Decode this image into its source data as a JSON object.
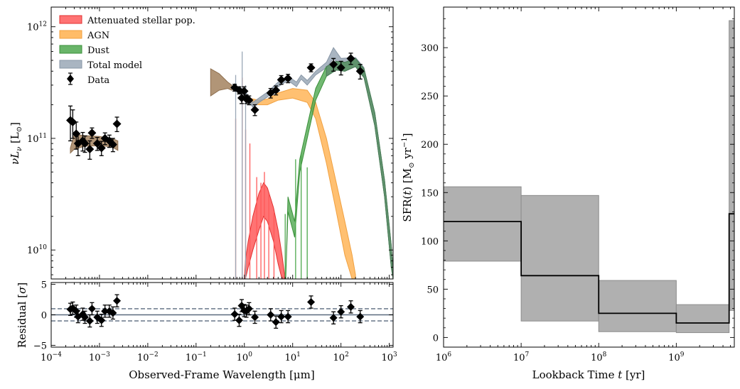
{
  "chart_data": [
    {
      "id": "sed",
      "type": "scatter",
      "xscale": "log",
      "yscale": "log",
      "xlim": [
        0.0001,
        1200
      ],
      "ylim": [
        5500000000.0,
        1500000000000.0
      ],
      "ylabel_parts": [
        "νL",
        "ν",
        " [L",
        "⊙",
        "]"
      ],
      "y_ticks": [
        {
          "value": 1000000000000.0,
          "label": "10",
          "exp": "12"
        },
        {
          "value": 100000000000.0,
          "label": "10",
          "exp": "11"
        },
        {
          "value": 10000000000.0,
          "label": "10",
          "exp": "10"
        }
      ],
      "legend": {
        "placement": "top-left",
        "entries": [
          {
            "label": "Attenuated stellar pop.",
            "color": "#ff5a5a",
            "kind": "patch"
          },
          {
            "label": "AGN",
            "color": "#ffb04d",
            "kind": "patch"
          },
          {
            "label": "Dust",
            "color": "#4fa84f",
            "kind": "patch"
          },
          {
            "label": "Total model",
            "color": "#9aa8b6",
            "kind": "patch"
          },
          {
            "label": "Data",
            "color": "#000000",
            "kind": "marker"
          }
        ]
      },
      "data_points": [
        {
          "x": 0.00025,
          "y": 145000000000.0,
          "err": 50000000000.0
        },
        {
          "x": 0.00028,
          "y": 140000000000.0,
          "err": 40000000000.0
        },
        {
          "x": 0.00033,
          "y": 110000000000.0,
          "err": 30000000000.0
        },
        {
          "x": 0.00036,
          "y": 90000000000.0,
          "err": 20000000000.0
        },
        {
          "x": 0.00045,
          "y": 95000000000.0,
          "err": 18000000000.0
        },
        {
          "x": 0.0005,
          "y": 90000000000.0,
          "err": 15000000000.0
        },
        {
          "x": 0.00063,
          "y": 80000000000.0,
          "err": 15000000000.0
        },
        {
          "x": 0.0007,
          "y": 112000000000.0,
          "err": 12000000000.0
        },
        {
          "x": 0.0009,
          "y": 90000000000.0,
          "err": 12000000000.0
        },
        {
          "x": 0.0011,
          "y": 82000000000.0,
          "err": 12000000000.0
        },
        {
          "x": 0.0013,
          "y": 100000000000.0,
          "err": 12000000000.0
        },
        {
          "x": 0.0016,
          "y": 95000000000.0,
          "err": 12000000000.0
        },
        {
          "x": 0.0019,
          "y": 88000000000.0,
          "err": 12000000000.0
        },
        {
          "x": 0.0023,
          "y": 135000000000.0,
          "err": 20000000000.0
        },
        {
          "x": 0.63,
          "y": 285000000000.0,
          "err": 20000000000.0
        },
        {
          "x": 0.78,
          "y": 270000000000.0,
          "err": 20000000000.0
        },
        {
          "x": 0.88,
          "y": 230000000000.0,
          "err": 25000000000.0
        },
        {
          "x": 0.99,
          "y": 265000000000.0,
          "err": 25000000000.0
        },
        {
          "x": 1.1,
          "y": 225000000000.0,
          "err": 20000000000.0
        },
        {
          "x": 1.25,
          "y": 220000000000.0,
          "err": 20000000000.0
        },
        {
          "x": 1.65,
          "y": 180000000000.0,
          "err": 20000000000.0
        },
        {
          "x": 3.5,
          "y": 255000000000.0,
          "err": 25000000000.0
        },
        {
          "x": 4.5,
          "y": 270000000000.0,
          "err": 25000000000.0
        },
        {
          "x": 5.8,
          "y": 335000000000.0,
          "err": 30000000000.0
        },
        {
          "x": 8.0,
          "y": 345000000000.0,
          "err": 30000000000.0
        },
        {
          "x": 24,
          "y": 430000000000.0,
          "err": 35000000000.0
        },
        {
          "x": 70,
          "y": 460000000000.0,
          "err": 60000000000.0
        },
        {
          "x": 100,
          "y": 430000000000.0,
          "err": 60000000000.0
        },
        {
          "x": 160,
          "y": 520000000000.0,
          "err": 60000000000.0
        },
        {
          "x": 250,
          "y": 400000000000.0,
          "err": 60000000000.0
        }
      ],
      "components": {
        "stellar_uv": [
          {
            "x": 0.00025,
            "lo": 74000000000.0,
            "hi": 82000000000.0
          },
          {
            "x": 0.0003,
            "lo": 80000000000.0,
            "hi": 108000000000.0
          },
          {
            "x": 0.0005,
            "lo": 85000000000.0,
            "hi": 106000000000.0
          },
          {
            "x": 0.001,
            "lo": 86000000000.0,
            "hi": 104000000000.0
          },
          {
            "x": 0.0018,
            "lo": 84000000000.0,
            "hi": 100000000000.0
          },
          {
            "x": 0.0024,
            "lo": 78000000000.0,
            "hi": 95000000000.0
          }
        ],
        "stellar_opt": [
          {
            "x": 0.2,
            "lo": 240000000000.0,
            "hi": 420000000000.0
          },
          {
            "x": 0.3,
            "lo": 270000000000.0,
            "hi": 380000000000.0
          },
          {
            "x": 0.45,
            "lo": 280000000000.0,
            "hi": 320000000000.0
          },
          {
            "x": 0.55,
            "lo": 270000000000.0,
            "hi": 300000000000.0
          }
        ],
        "stellar_att": [
          {
            "x": 1.0,
            "lo": 5500000000.0,
            "hi": 5500000000.0
          },
          {
            "x": 1.05,
            "lo": 5500000000.0,
            "hi": 8000000000.0
          },
          {
            "x": 1.2,
            "lo": 7000000000.0,
            "hi": 12000000000.0
          },
          {
            "x": 1.5,
            "lo": 10000000000.0,
            "hi": 20000000000.0
          },
          {
            "x": 2.0,
            "lo": 15000000000.0,
            "hi": 32000000000.0
          },
          {
            "x": 2.5,
            "lo": 20000000000.0,
            "hi": 40000000000.0
          },
          {
            "x": 3.0,
            "lo": 18000000000.0,
            "hi": 36000000000.0
          },
          {
            "x": 4.0,
            "lo": 12000000000.0,
            "hi": 24000000000.0
          },
          {
            "x": 5.0,
            "lo": 7500000000.0,
            "hi": 15000000000.0
          },
          {
            "x": 6.0,
            "lo": 5500000000.0,
            "hi": 9000000000.0
          },
          {
            "x": 6.8,
            "lo": 5500000000.0,
            "hi": 6000000000.0
          }
        ],
        "agn": [
          {
            "x": 1.2,
            "lo": 210000000000.0,
            "hi": 230000000000.0
          },
          {
            "x": 2.0,
            "lo": 200000000000.0,
            "hi": 220000000000.0
          },
          {
            "x": 3.0,
            "lo": 200000000000.0,
            "hi": 225000000000.0
          },
          {
            "x": 5.0,
            "lo": 220000000000.0,
            "hi": 255000000000.0
          },
          {
            "x": 10,
            "lo": 230000000000.0,
            "hi": 280000000000.0
          },
          {
            "x": 20,
            "lo": 210000000000.0,
            "hi": 270000000000.0
          },
          {
            "x": 30,
            "lo": 150000000000.0,
            "hi": 210000000000.0
          },
          {
            "x": 50,
            "lo": 60000000000.0,
            "hi": 100000000000.0
          },
          {
            "x": 80,
            "lo": 22000000000.0,
            "hi": 40000000000.0
          },
          {
            "x": 120,
            "lo": 9000000000.0,
            "hi": 18000000000.0
          },
          {
            "x": 170,
            "lo": 5500000000.0,
            "hi": 9000000000.0
          },
          {
            "x": 200,
            "lo": 5500000000.0,
            "hi": 6000000000.0
          }
        ],
        "dust": [
          {
            "x": 7.2,
            "lo": 5500000000.0,
            "hi": 5500000000.0
          },
          {
            "x": 8.0,
            "lo": 22000000000.0,
            "hi": 30000000000.0
          },
          {
            "x": 11,
            "lo": 13000000000.0,
            "hi": 18000000000.0
          },
          {
            "x": 14,
            "lo": 50000000000.0,
            "hi": 65000000000.0
          },
          {
            "x": 20,
            "lo": 100000000000.0,
            "hi": 130000000000.0
          },
          {
            "x": 30,
            "lo": 220000000000.0,
            "hi": 280000000000.0
          },
          {
            "x": 50,
            "lo": 360000000000.0,
            "hi": 440000000000.0
          },
          {
            "x": 80,
            "lo": 410000000000.0,
            "hi": 490000000000.0
          },
          {
            "x": 120,
            "lo": 400000000000.0,
            "hi": 480000000000.0
          },
          {
            "x": 200,
            "lo": 440000000000.0,
            "hi": 520000000000.0
          },
          {
            "x": 300,
            "lo": 350000000000.0,
            "hi": 420000000000.0
          },
          {
            "x": 500,
            "lo": 130000000000.0,
            "hi": 170000000000.0
          },
          {
            "x": 800,
            "lo": 30000000000.0,
            "hi": 42000000000.0
          },
          {
            "x": 1100,
            "lo": 7000000000.0,
            "hi": 11000000000.0
          },
          {
            "x": 1200,
            "lo": 5500000000.0,
            "hi": 6500000000.0
          }
        ],
        "total": [
          {
            "x": 0.6,
            "lo": 270000000000.0,
            "hi": 295000000000.0
          },
          {
            "x": 1.0,
            "lo": 245000000000.0,
            "hi": 270000000000.0
          },
          {
            "x": 1.5,
            "lo": 190000000000.0,
            "hi": 210000000000.0
          },
          {
            "x": 2.0,
            "lo": 210000000000.0,
            "hi": 230000000000.0
          },
          {
            "x": 3.0,
            "lo": 235000000000.0,
            "hi": 260000000000.0
          },
          {
            "x": 5.0,
            "lo": 290000000000.0,
            "hi": 320000000000.0
          },
          {
            "x": 8.0,
            "lo": 330000000000.0,
            "hi": 360000000000.0
          },
          {
            "x": 12,
            "lo": 290000000000.0,
            "hi": 320000000000.0
          },
          {
            "x": 15,
            "lo": 340000000000.0,
            "hi": 370000000000.0
          },
          {
            "x": 20,
            "lo": 300000000000.0,
            "hi": 330000000000.0
          },
          {
            "x": 30,
            "lo": 370000000000.0,
            "hi": 400000000000.0
          },
          {
            "x": 50,
            "lo": 430000000000.0,
            "hi": 480000000000.0
          },
          {
            "x": 70,
            "lo": 520000000000.0,
            "hi": 650000000000.0
          },
          {
            "x": 100,
            "lo": 440000000000.0,
            "hi": 520000000000.0
          },
          {
            "x": 200,
            "lo": 460000000000.0,
            "hi": 530000000000.0
          },
          {
            "x": 300,
            "lo": 360000000000.0,
            "hi": 430000000000.0
          }
        ],
        "green_lines": [
          {
            "x": 7.0,
            "top": 21000000000.0
          },
          {
            "x": 11.5,
            "top": 65000000000.0
          },
          {
            "x": 15.0,
            "top": 72000000000.0
          },
          {
            "x": 20.0,
            "top": 55000000000.0
          }
        ],
        "red_lines": [
          {
            "x": 0.66,
            "top": 150000000000.0
          },
          {
            "x": 0.9,
            "top": 350000000000.0
          },
          {
            "x": 1.06,
            "top": 120000000000.0
          },
          {
            "x": 1.3,
            "top": 90000000000.0
          },
          {
            "x": 1.8,
            "top": 45000000000.0
          },
          {
            "x": 2.2,
            "top": 40000000000.0
          },
          {
            "x": 2.6,
            "top": 50000000000.0
          },
          {
            "x": 3.2,
            "top": 32000000000.0
          },
          {
            "x": 4.1,
            "top": 22000000000.0
          }
        ],
        "grey_lines": [
          {
            "x": 0.66,
            "top": 370000000000.0
          },
          {
            "x": 0.9,
            "top": 600000000000.0
          },
          {
            "x": 1.06,
            "top": 300000000000.0
          }
        ]
      }
    },
    {
      "id": "residual",
      "type": "scatter",
      "xscale": "log",
      "xlim": [
        0.0001,
        1200
      ],
      "ylim": [
        -5.3,
        5.3
      ],
      "xlabel": "Observed-Frame Wavelength [μm]",
      "ylabel_parts": [
        "Residual [",
        "σ",
        "]"
      ],
      "y_ticks": [
        {
          "value": 5,
          "label": "5"
        },
        {
          "value": 0,
          "label": "0"
        },
        {
          "value": -5,
          "label": "−5"
        }
      ],
      "x_ticks": [
        {
          "value": 0.0001,
          "label": "10",
          "exp": "−4"
        },
        {
          "value": 0.001,
          "label": "10",
          "exp": "−3"
        },
        {
          "value": 0.01,
          "label": "10",
          "exp": "−2"
        },
        {
          "value": 0.1,
          "label": "10",
          "exp": "−1"
        },
        {
          "value": 1,
          "label": "10",
          "exp": "0"
        },
        {
          "value": 10,
          "label": "10",
          "exp": "1"
        },
        {
          "value": 100,
          "label": "10",
          "exp": "2"
        },
        {
          "value": 1000,
          "label": "10",
          "exp": "3"
        }
      ],
      "reference_lines": [
        {
          "y": 0,
          "style": "solid"
        },
        {
          "y": 1,
          "style": "dashed"
        },
        {
          "y": -1,
          "style": "dashed"
        }
      ],
      "data_points": [
        {
          "x": 0.00025,
          "y": 0.9
        },
        {
          "x": 0.00028,
          "y": 1.1
        },
        {
          "x": 0.00033,
          "y": 0.6
        },
        {
          "x": 0.00036,
          "y": -0.3
        },
        {
          "x": 0.00045,
          "y": 0.1
        },
        {
          "x": 0.0005,
          "y": -0.4
        },
        {
          "x": 0.00063,
          "y": -1.0
        },
        {
          "x": 0.0007,
          "y": 1.0
        },
        {
          "x": 0.0009,
          "y": -0.4
        },
        {
          "x": 0.0011,
          "y": -0.9
        },
        {
          "x": 0.0013,
          "y": 0.6
        },
        {
          "x": 0.0016,
          "y": 0.6
        },
        {
          "x": 0.0019,
          "y": 0.3
        },
        {
          "x": 0.0023,
          "y": 2.3
        },
        {
          "x": 0.63,
          "y": 0.1
        },
        {
          "x": 0.78,
          "y": -0.9
        },
        {
          "x": 0.88,
          "y": 1.5
        },
        {
          "x": 0.99,
          "y": 0.7
        },
        {
          "x": 1.1,
          "y": 0.6
        },
        {
          "x": 1.25,
          "y": 1.0
        },
        {
          "x": 1.65,
          "y": -0.4
        },
        {
          "x": 3.5,
          "y": 0.0
        },
        {
          "x": 4.5,
          "y": -1.2
        },
        {
          "x": 5.8,
          "y": -0.3
        },
        {
          "x": 8.0,
          "y": -0.3
        },
        {
          "x": 24,
          "y": 2.1
        },
        {
          "x": 70,
          "y": -0.5
        },
        {
          "x": 100,
          "y": 0.5
        },
        {
          "x": 160,
          "y": 1.3
        },
        {
          "x": 250,
          "y": -0.3
        }
      ]
    },
    {
      "id": "sfh",
      "type": "line",
      "xscale": "log",
      "xlim": [
        1000000,
        5600000000
      ],
      "ylim": [
        -10,
        342
      ],
      "xlabel_parts": [
        "Lookback Time ",
        "t",
        " [yr]"
      ],
      "ylabel_parts": [
        "SFR(",
        "t",
        ") [M",
        "⊙",
        " yr",
        "−1",
        "]"
      ],
      "y_ticks": [
        {
          "value": 0,
          "label": "0"
        },
        {
          "value": 50,
          "label": "50"
        },
        {
          "value": 100,
          "label": "100"
        },
        {
          "value": 150,
          "label": "150"
        },
        {
          "value": 200,
          "label": "200"
        },
        {
          "value": 250,
          "label": "250"
        },
        {
          "value": 300,
          "label": "300"
        }
      ],
      "x_ticks": [
        {
          "value": 1000000,
          "label": "10",
          "exp": "6"
        },
        {
          "value": 10000000,
          "label": "10",
          "exp": "7"
        },
        {
          "value": 100000000,
          "label": "10",
          "exp": "8"
        },
        {
          "value": 1000000000,
          "label": "10",
          "exp": "9"
        }
      ],
      "bins": [
        {
          "t0": 1000000,
          "t1": 10000000,
          "sfr": 120,
          "lo": 79,
          "hi": 156
        },
        {
          "t0": 10000000,
          "t1": 100000000,
          "sfr": 64,
          "lo": 17,
          "hi": 147
        },
        {
          "t0": 100000000,
          "t1": 1000000000,
          "sfr": 25,
          "lo": 6,
          "hi": 59
        },
        {
          "t0": 1000000000,
          "t1": 4800000000,
          "sfr": 15,
          "lo": 5,
          "hi": 34
        },
        {
          "t0": 4800000000,
          "t1": 5600000000,
          "sfr": 128,
          "lo": 28,
          "hi": 328
        }
      ]
    }
  ]
}
